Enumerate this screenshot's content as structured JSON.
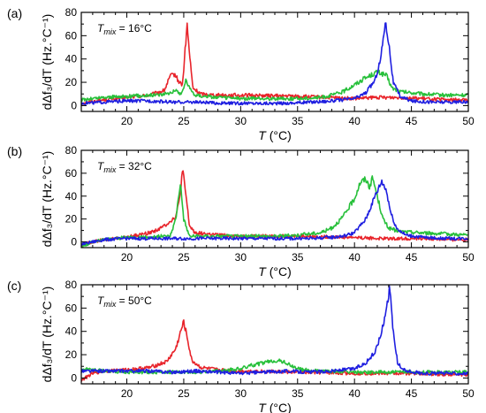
{
  "chart_data": [
    {
      "type": "line",
      "panel_label": "(a)",
      "annotation": {
        "symbol": "T",
        "subscript": "mix",
        "text": " = 16°C"
      },
      "xlabel": {
        "symbol": "T",
        "text": " (°C)"
      },
      "ylabel": "dΔf₃/dT (Hz.°C⁻¹)",
      "xlim": [
        16,
        50
      ],
      "ylim": [
        -5,
        80
      ],
      "xticks": [
        20,
        25,
        30,
        35,
        40,
        45,
        50
      ],
      "yticks": [
        0,
        20,
        40,
        60,
        80
      ],
      "colors": {
        "red": "#e8242b",
        "green": "#27c03a",
        "blue": "#1f1fe0"
      },
      "series": [
        {
          "color": "red",
          "values": [
            [
              16,
              2
            ],
            [
              18,
              5
            ],
            [
              20,
              7
            ],
            [
              22,
              9
            ],
            [
              23.3,
              13
            ],
            [
              23.8,
              25
            ],
            [
              24.2,
              27
            ],
            [
              24.6,
              20
            ],
            [
              24.9,
              18
            ],
            [
              25.1,
              45
            ],
            [
              25.3,
              69
            ],
            [
              25.5,
              45
            ],
            [
              25.8,
              15
            ],
            [
              26.5,
              10
            ],
            [
              28,
              9
            ],
            [
              30,
              9
            ],
            [
              35,
              8
            ],
            [
              40,
              6
            ],
            [
              42,
              7
            ],
            [
              44,
              7
            ],
            [
              46,
              6
            ],
            [
              48,
              5
            ],
            [
              50,
              5
            ]
          ]
        },
        {
          "color": "green",
          "values": [
            [
              16,
              5
            ],
            [
              18,
              7
            ],
            [
              20,
              8
            ],
            [
              22,
              9
            ],
            [
              23.5,
              10
            ],
            [
              24.2,
              13
            ],
            [
              24.8,
              10
            ],
            [
              25.2,
              22
            ],
            [
              25.5,
              15
            ],
            [
              26,
              9
            ],
            [
              28,
              7
            ],
            [
              30,
              6
            ],
            [
              32,
              6
            ],
            [
              35,
              6
            ],
            [
              37,
              7
            ],
            [
              38,
              9
            ],
            [
              39,
              12
            ],
            [
              40,
              18
            ],
            [
              41,
              24
            ],
            [
              42,
              29
            ],
            [
              42.8,
              26
            ],
            [
              43.3,
              15
            ],
            [
              44,
              12
            ],
            [
              46,
              10
            ],
            [
              48,
              9
            ],
            [
              50,
              9
            ]
          ]
        },
        {
          "color": "blue",
          "values": [
            [
              16,
              2
            ],
            [
              18,
              3
            ],
            [
              20,
              4
            ],
            [
              22,
              4
            ],
            [
              24,
              3
            ],
            [
              26,
              3
            ],
            [
              28,
              2
            ],
            [
              30,
              2
            ],
            [
              32,
              2
            ],
            [
              34,
              2
            ],
            [
              36,
              3
            ],
            [
              38,
              4
            ],
            [
              40,
              6
            ],
            [
              41,
              11
            ],
            [
              41.8,
              22
            ],
            [
              42.3,
              40
            ],
            [
              42.7,
              72
            ],
            [
              43,
              55
            ],
            [
              43.4,
              20
            ],
            [
              44,
              8
            ],
            [
              45,
              4
            ],
            [
              47,
              3
            ],
            [
              50,
              3
            ]
          ]
        }
      ]
    },
    {
      "type": "line",
      "panel_label": "(b)",
      "annotation": {
        "symbol": "T",
        "subscript": "mix",
        "text": " = 32°C"
      },
      "xlabel": {
        "symbol": "T",
        "text": " (°C)"
      },
      "ylabel": "dΔf₃/dT (Hz.°C⁻¹)",
      "xlim": [
        16,
        50
      ],
      "ylim": [
        -5,
        80
      ],
      "xticks": [
        20,
        25,
        30,
        35,
        40,
        45,
        50
      ],
      "yticks": [
        0,
        20,
        40,
        60,
        80
      ],
      "colors": {
        "red": "#e8242b",
        "green": "#27c03a",
        "blue": "#1f1fe0"
      },
      "series": [
        {
          "color": "red",
          "values": [
            [
              16,
              -3
            ],
            [
              17,
              0
            ],
            [
              18,
              2
            ],
            [
              20,
              4
            ],
            [
              22,
              8
            ],
            [
              23,
              12
            ],
            [
              23.8,
              18
            ],
            [
              24.3,
              22
            ],
            [
              24.6,
              35
            ],
            [
              24.9,
              63
            ],
            [
              25.2,
              40
            ],
            [
              25.5,
              14
            ],
            [
              26,
              8
            ],
            [
              28,
              6
            ],
            [
              30,
              5
            ],
            [
              35,
              5
            ],
            [
              40,
              4
            ],
            [
              42,
              3
            ],
            [
              44,
              3
            ],
            [
              46,
              3
            ],
            [
              48,
              2
            ],
            [
              50,
              2
            ]
          ]
        },
        {
          "color": "green",
          "values": [
            [
              16,
              -4
            ],
            [
              17,
              0
            ],
            [
              18,
              2
            ],
            [
              20,
              4
            ],
            [
              22,
              4
            ],
            [
              23,
              5
            ],
            [
              23.8,
              5
            ],
            [
              24.3,
              20
            ],
            [
              24.7,
              52
            ],
            [
              25,
              20
            ],
            [
              25.5,
              5
            ],
            [
              27,
              5
            ],
            [
              30,
              5
            ],
            [
              33,
              5
            ],
            [
              35,
              6
            ],
            [
              37,
              8
            ],
            [
              38,
              12
            ],
            [
              39,
              22
            ],
            [
              40,
              38
            ],
            [
              40.5,
              52
            ],
            [
              41,
              55
            ],
            [
              41.3,
              48
            ],
            [
              41.6,
              56
            ],
            [
              42,
              40
            ],
            [
              42.5,
              20
            ],
            [
              43,
              12
            ],
            [
              44,
              9
            ],
            [
              46,
              8
            ],
            [
              48,
              7
            ],
            [
              50,
              6
            ]
          ]
        },
        {
          "color": "blue",
          "values": [
            [
              16,
              -2
            ],
            [
              18,
              2
            ],
            [
              20,
              3
            ],
            [
              22,
              3
            ],
            [
              24,
              3
            ],
            [
              26,
              3
            ],
            [
              28,
              3
            ],
            [
              30,
              3
            ],
            [
              32,
              3
            ],
            [
              34,
              3
            ],
            [
              36,
              3
            ],
            [
              38,
              4
            ],
            [
              39,
              5
            ],
            [
              40,
              8
            ],
            [
              41,
              20
            ],
            [
              41.8,
              40
            ],
            [
              42.4,
              53
            ],
            [
              42.8,
              45
            ],
            [
              43.2,
              25
            ],
            [
              43.7,
              12
            ],
            [
              44.5,
              6
            ],
            [
              46,
              4
            ],
            [
              48,
              3
            ],
            [
              50,
              3
            ]
          ]
        }
      ]
    },
    {
      "type": "line",
      "panel_label": "(c)",
      "annotation": {
        "symbol": "T",
        "subscript": "mix",
        "text": " = 50°C"
      },
      "xlabel": {
        "symbol": "T",
        "text": " (°C)"
      },
      "ylabel": "dΔf₃/dT (Hz.°C⁻¹)",
      "xlim": [
        16,
        50
      ],
      "ylim": [
        -5,
        80
      ],
      "xticks": [
        20,
        25,
        30,
        35,
        40,
        45,
        50
      ],
      "yticks": [
        0,
        20,
        40,
        60,
        80
      ],
      "colors": {
        "red": "#e8242b",
        "green": "#27c03a",
        "blue": "#1f1fe0"
      },
      "series": [
        {
          "color": "red",
          "values": [
            [
              16,
              -2
            ],
            [
              17,
              4
            ],
            [
              18,
              6
            ],
            [
              20,
              7
            ],
            [
              22,
              9
            ],
            [
              23.5,
              14
            ],
            [
              24.3,
              25
            ],
            [
              24.8,
              42
            ],
            [
              25,
              48
            ],
            [
              25.3,
              35
            ],
            [
              25.7,
              15
            ],
            [
              26.5,
              9
            ],
            [
              28,
              7
            ],
            [
              30,
              6
            ],
            [
              35,
              5
            ],
            [
              40,
              4
            ],
            [
              45,
              4
            ],
            [
              48,
              3
            ],
            [
              50,
              3
            ]
          ]
        },
        {
          "color": "green",
          "values": [
            [
              16,
              8
            ],
            [
              18,
              6
            ],
            [
              20,
              5
            ],
            [
              22,
              5
            ],
            [
              24,
              5
            ],
            [
              26,
              5
            ],
            [
              28,
              6
            ],
            [
              30,
              8
            ],
            [
              31,
              11
            ],
            [
              32,
              13
            ],
            [
              33,
              15
            ],
            [
              33.8,
              14
            ],
            [
              34.5,
              10
            ],
            [
              35.5,
              7
            ],
            [
              37,
              6
            ],
            [
              40,
              5
            ],
            [
              45,
              5
            ],
            [
              48,
              5
            ],
            [
              50,
              5
            ]
          ]
        },
        {
          "color": "blue",
          "values": [
            [
              16,
              6
            ],
            [
              18,
              6
            ],
            [
              20,
              6
            ],
            [
              22,
              6
            ],
            [
              24,
              5
            ],
            [
              26,
              6
            ],
            [
              28,
              5
            ],
            [
              30,
              4
            ],
            [
              32,
              5
            ],
            [
              34,
              6
            ],
            [
              36,
              5
            ],
            [
              38,
              6
            ],
            [
              40,
              8
            ],
            [
              41,
              13
            ],
            [
              41.8,
              22
            ],
            [
              42.4,
              40
            ],
            [
              42.8,
              60
            ],
            [
              43.1,
              78
            ],
            [
              43.4,
              40
            ],
            [
              43.8,
              12
            ],
            [
              44.5,
              6
            ],
            [
              46,
              4
            ],
            [
              48,
              4
            ],
            [
              50,
              4
            ]
          ]
        }
      ]
    }
  ]
}
